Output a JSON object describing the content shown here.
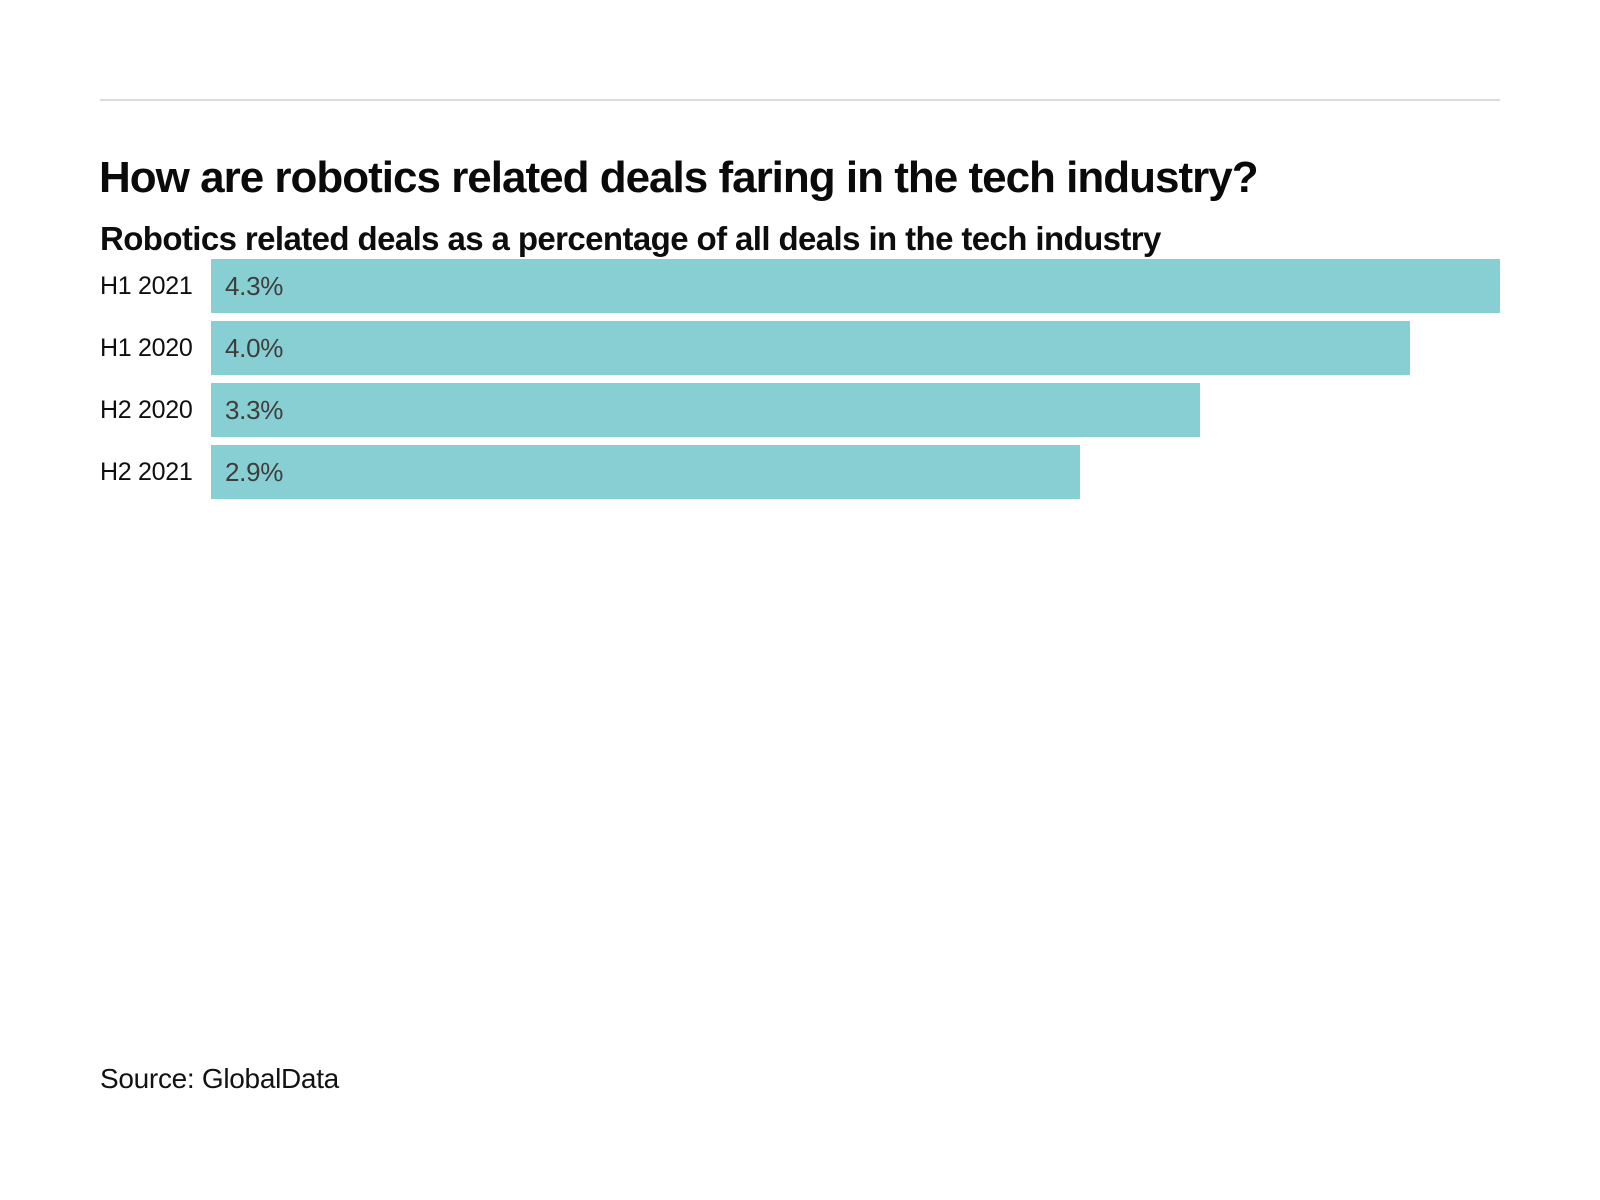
{
  "header": {
    "title": "How are robotics related deals faring in the tech industry?",
    "subtitle": "Robotics related deals as a percentage of all deals in the tech industry"
  },
  "chart_data": {
    "type": "bar",
    "orientation": "horizontal",
    "title": "How are robotics related deals faring in the tech industry?",
    "subtitle": "Robotics related deals as a percentage of all deals in the tech industry",
    "categories": [
      "H1 2021",
      "H1 2020",
      "H2 2020",
      "H2 2021"
    ],
    "values": [
      4.3,
      4.0,
      3.3,
      2.9
    ],
    "value_labels": [
      "4.3%",
      "4.0%",
      "3.3%",
      "2.9%"
    ],
    "xlim": [
      0,
      4.3
    ],
    "grid": false,
    "legend": false,
    "axis_ticks_visible": false,
    "colors": {
      "bar_fill": "#87CFD3",
      "value_text": "#3d3d3d",
      "category_text": "#0f0f0f",
      "divider": "#dcdcdc"
    }
  },
  "footer": {
    "source": "Source: GlobalData"
  }
}
